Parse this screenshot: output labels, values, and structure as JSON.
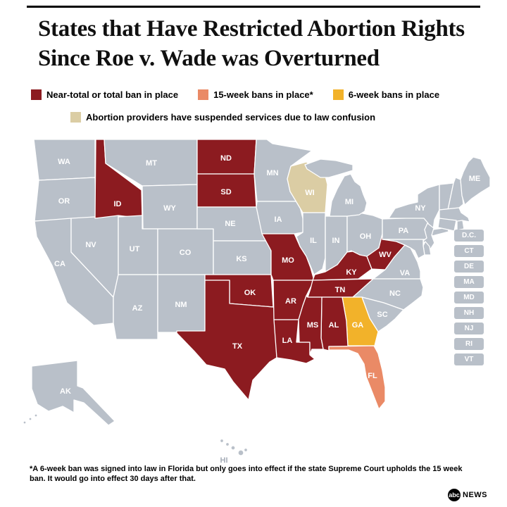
{
  "title": {
    "line1": "States that Have Restricted Abortion Rights",
    "line2": "Since Roe v. Wade was Overturned"
  },
  "legend": {
    "items": [
      {
        "label": "Near-total or total ban in place",
        "color": "#8c1b20",
        "row": 1
      },
      {
        "label": "15-week bans in place*",
        "color": "#ea8a66",
        "row": 1
      },
      {
        "label": "6-week bans in place",
        "color": "#f2b22a",
        "row": 1
      },
      {
        "label": "Abortion providers have suspended services due to law confusion",
        "color": "#dbcda4",
        "row": 2
      }
    ]
  },
  "map": {
    "status_colors": {
      "near_total_ban": "#8c1b20",
      "fifteen_week_ban": "#ea8a66",
      "six_week_ban": "#f2b22a",
      "services_suspended": "#dbcda4",
      "no_restriction_shown": "#b9c0c9"
    },
    "states": [
      {
        "abbr": "WA",
        "status": "no_restriction_shown"
      },
      {
        "abbr": "OR",
        "status": "no_restriction_shown"
      },
      {
        "abbr": "CA",
        "status": "no_restriction_shown"
      },
      {
        "abbr": "NV",
        "status": "no_restriction_shown"
      },
      {
        "abbr": "ID",
        "status": "near_total_ban"
      },
      {
        "abbr": "MT",
        "status": "no_restriction_shown"
      },
      {
        "abbr": "WY",
        "status": "no_restriction_shown"
      },
      {
        "abbr": "UT",
        "status": "no_restriction_shown"
      },
      {
        "abbr": "CO",
        "status": "no_restriction_shown"
      },
      {
        "abbr": "AZ",
        "status": "no_restriction_shown"
      },
      {
        "abbr": "NM",
        "status": "no_restriction_shown"
      },
      {
        "abbr": "ND",
        "status": "near_total_ban"
      },
      {
        "abbr": "SD",
        "status": "near_total_ban"
      },
      {
        "abbr": "NE",
        "status": "no_restriction_shown"
      },
      {
        "abbr": "KS",
        "status": "no_restriction_shown"
      },
      {
        "abbr": "OK",
        "status": "near_total_ban"
      },
      {
        "abbr": "TX",
        "status": "near_total_ban"
      },
      {
        "abbr": "MN",
        "status": "no_restriction_shown"
      },
      {
        "abbr": "IA",
        "status": "no_restriction_shown"
      },
      {
        "abbr": "MO",
        "status": "near_total_ban"
      },
      {
        "abbr": "AR",
        "status": "near_total_ban"
      },
      {
        "abbr": "LA",
        "status": "near_total_ban"
      },
      {
        "abbr": "WI",
        "status": "services_suspended"
      },
      {
        "abbr": "IL",
        "status": "no_restriction_shown"
      },
      {
        "abbr": "IN",
        "status": "no_restriction_shown"
      },
      {
        "abbr": "OH",
        "status": "no_restriction_shown"
      },
      {
        "abbr": "MI",
        "status": "no_restriction_shown"
      },
      {
        "abbr": "KY",
        "status": "near_total_ban"
      },
      {
        "abbr": "TN",
        "status": "near_total_ban"
      },
      {
        "abbr": "WV",
        "status": "near_total_ban"
      },
      {
        "abbr": "VA",
        "status": "no_restriction_shown"
      },
      {
        "abbr": "PA",
        "status": "no_restriction_shown"
      },
      {
        "abbr": "NY",
        "status": "no_restriction_shown"
      },
      {
        "abbr": "ME",
        "status": "no_restriction_shown"
      },
      {
        "abbr": "VT",
        "status": "no_restriction_shown"
      },
      {
        "abbr": "NH",
        "status": "no_restriction_shown"
      },
      {
        "abbr": "MA",
        "status": "no_restriction_shown"
      },
      {
        "abbr": "CT",
        "status": "no_restriction_shown"
      },
      {
        "abbr": "RI",
        "status": "no_restriction_shown"
      },
      {
        "abbr": "NJ",
        "status": "no_restriction_shown"
      },
      {
        "abbr": "DE",
        "status": "no_restriction_shown"
      },
      {
        "abbr": "MD",
        "status": "no_restriction_shown"
      },
      {
        "abbr": "NC",
        "status": "no_restriction_shown"
      },
      {
        "abbr": "SC",
        "status": "no_restriction_shown"
      },
      {
        "abbr": "GA",
        "status": "six_week_ban"
      },
      {
        "abbr": "AL",
        "status": "near_total_ban"
      },
      {
        "abbr": "MS",
        "status": "near_total_ban"
      },
      {
        "abbr": "FL",
        "status": "fifteen_week_ban"
      },
      {
        "abbr": "AK",
        "status": "no_restriction_shown"
      },
      {
        "abbr": "HI",
        "status": "no_restriction_shown"
      }
    ],
    "small_state_boxes": [
      "D.C.",
      "CT",
      "DE",
      "MA",
      "MD",
      "NH",
      "NJ",
      "RI",
      "VT"
    ]
  },
  "footnote": "*A 6-week ban was signed into law in Florida but only goes into effect if the state Supreme Court upholds the 15 week ban.  It would go into effect 30 days after that.",
  "logo": {
    "abc": "abc",
    "news": "NEWS"
  }
}
